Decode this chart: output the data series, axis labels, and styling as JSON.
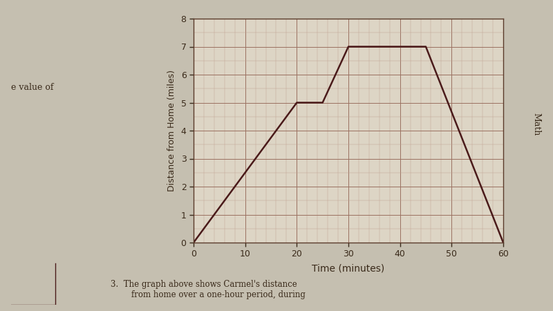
{
  "x_points": [
    0,
    20,
    25,
    30,
    45,
    60
  ],
  "y_points": [
    0,
    5,
    5,
    7,
    7,
    0
  ],
  "xlabel": "Time (minutes)",
  "ylabel": "Distance from Home (miles)",
  "xlim": [
    0,
    60
  ],
  "ylim": [
    0,
    8
  ],
  "x_ticks": [
    0,
    10,
    20,
    30,
    40,
    50,
    60
  ],
  "y_ticks": [
    0,
    1,
    2,
    3,
    4,
    5,
    6,
    7,
    8
  ],
  "line_color": "#4a1a1a",
  "grid_major_color": "#9a7060",
  "grid_minor_color": "#c0a090",
  "bg_color": "#ddd5c5",
  "fig_bg_color": "#bdb5a5",
  "line_width": 1.8,
  "label_left": "e value of",
  "label_right": "Math",
  "label_bottom": "3.  The graph above shows Carmel's distance\n        from home over a one-hour period, during",
  "left_text_color": "#3a2a1a",
  "page_bg": "#c5bfb0"
}
